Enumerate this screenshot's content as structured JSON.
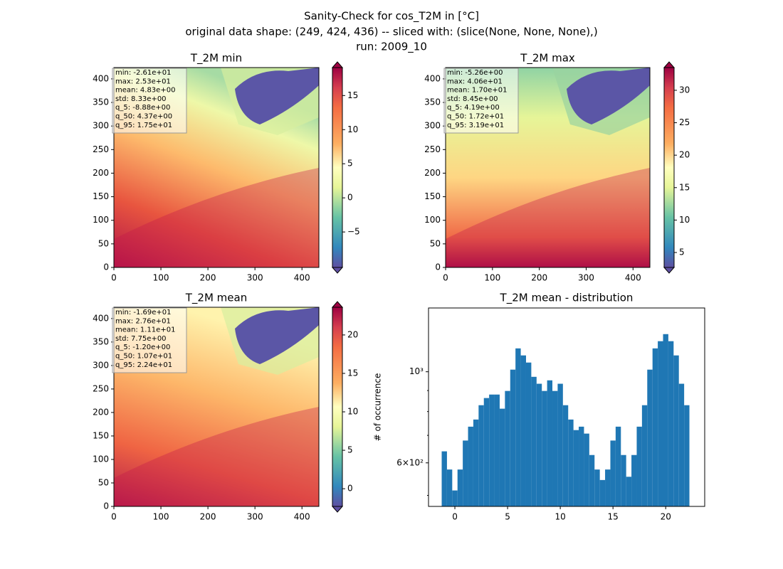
{
  "figure": {
    "title": [
      "Sanity-Check for cos_T2M in [°C]",
      "original data shape: (249, 424, 436) -- sliced with: (slice(None, None, None),)",
      "run: 2009_10"
    ]
  },
  "chart_data": [
    {
      "type": "heatmap",
      "title": "T_2M min",
      "xlim": [
        0,
        436
      ],
      "ylim": [
        0,
        424
      ],
      "xticks": [
        0,
        100,
        200,
        300,
        400
      ],
      "yticks": [
        0,
        50,
        100,
        150,
        200,
        250,
        300,
        350,
        400
      ],
      "clim": [
        -10.2,
        19.1
      ],
      "cticks": [
        -5,
        0,
        5,
        10,
        15
      ],
      "colorbar_tick_labels": [
        {
          "value": -5,
          "label": "−5"
        }
      ],
      "stats": [
        "min: -2.61e+01",
        "max: 2.53e+01",
        "mean: 4.83e+00",
        "std: 8.33e+00",
        "q_5: -8.88e+00",
        "q_50: 4.37e+00",
        "q_95: 1.75e+01"
      ]
    },
    {
      "type": "heatmap",
      "title": "T_2M max",
      "xlim": [
        0,
        436
      ],
      "ylim": [
        0,
        424
      ],
      "xticks": [
        0,
        100,
        200,
        300,
        400
      ],
      "yticks": [
        0,
        50,
        100,
        150,
        200,
        250,
        300,
        350,
        400
      ],
      "clim": [
        2.7,
        33.5
      ],
      "cticks": [
        5,
        10,
        15,
        20,
        25,
        30
      ],
      "stats": [
        "min: -5.26e+00",
        "max: 4.06e+01",
        "mean: 1.70e+01",
        "std: 8.45e+00",
        "q_5: 4.19e+00",
        "q_50: 1.72e+01",
        "q_95: 3.19e+01"
      ]
    },
    {
      "type": "heatmap",
      "title": "T_2M mean",
      "xlim": [
        0,
        436
      ],
      "ylim": [
        0,
        424
      ],
      "xticks": [
        0,
        100,
        200,
        300,
        400
      ],
      "yticks": [
        0,
        50,
        100,
        150,
        200,
        250,
        300,
        350,
        400
      ],
      "clim": [
        -2.3,
        23.6
      ],
      "cticks": [
        0,
        5,
        10,
        15,
        20
      ],
      "stats": [
        "min: -1.69e+01",
        "max: 2.76e+01",
        "mean: 1.11e+01",
        "std: 7.75e+00",
        "q_5: -1.20e+00",
        "q_50: 1.07e+01",
        "q_95: 2.24e+01"
      ]
    },
    {
      "type": "histogram",
      "title": "T_2M mean - distribution",
      "y_label": "# of occurrence",
      "color": "#1f77b4",
      "log_y": true,
      "xlim": [
        -2.5,
        23.7
      ],
      "ylim": [
        470,
        1430
      ],
      "xticks": [
        0,
        5,
        10,
        15,
        20
      ],
      "yticks": [
        {
          "value": 600,
          "label": "6×10²"
        },
        {
          "value": 1000,
          "label": "10³"
        }
      ],
      "yminor_ticks": [
        500,
        700,
        800,
        900
      ],
      "bins": [
        -1.25,
        -0.75,
        -0.25,
        0.25,
        0.75,
        1.25,
        1.75,
        2.25,
        2.75,
        3.25,
        3.75,
        4.25,
        4.75,
        5.25,
        5.75,
        6.25,
        6.75,
        7.25,
        7.75,
        8.25,
        8.75,
        9.25,
        9.75,
        10.25,
        10.75,
        11.25,
        11.75,
        12.25,
        12.75,
        13.25,
        13.75,
        14.25,
        14.75,
        15.25,
        15.75,
        16.25,
        16.75,
        17.25,
        17.75,
        18.25,
        18.75,
        19.25,
        19.75,
        20.25,
        20.75,
        21.25,
        21.75,
        22.25
      ],
      "counts": [
        640,
        578,
        514,
        578,
        680,
        735,
        765,
        829,
        863,
        880,
        880,
        813,
        898,
        1012,
        1140,
        1096,
        1053,
        972,
        935,
        898,
        953,
        898,
        935,
        829,
        765,
        721,
        735,
        707,
        627,
        578,
        545,
        578,
        680,
        735,
        627,
        555,
        627,
        735,
        829,
        1012,
        1140,
        1187,
        1235,
        1187,
        1096,
        935,
        829
      ]
    }
  ]
}
